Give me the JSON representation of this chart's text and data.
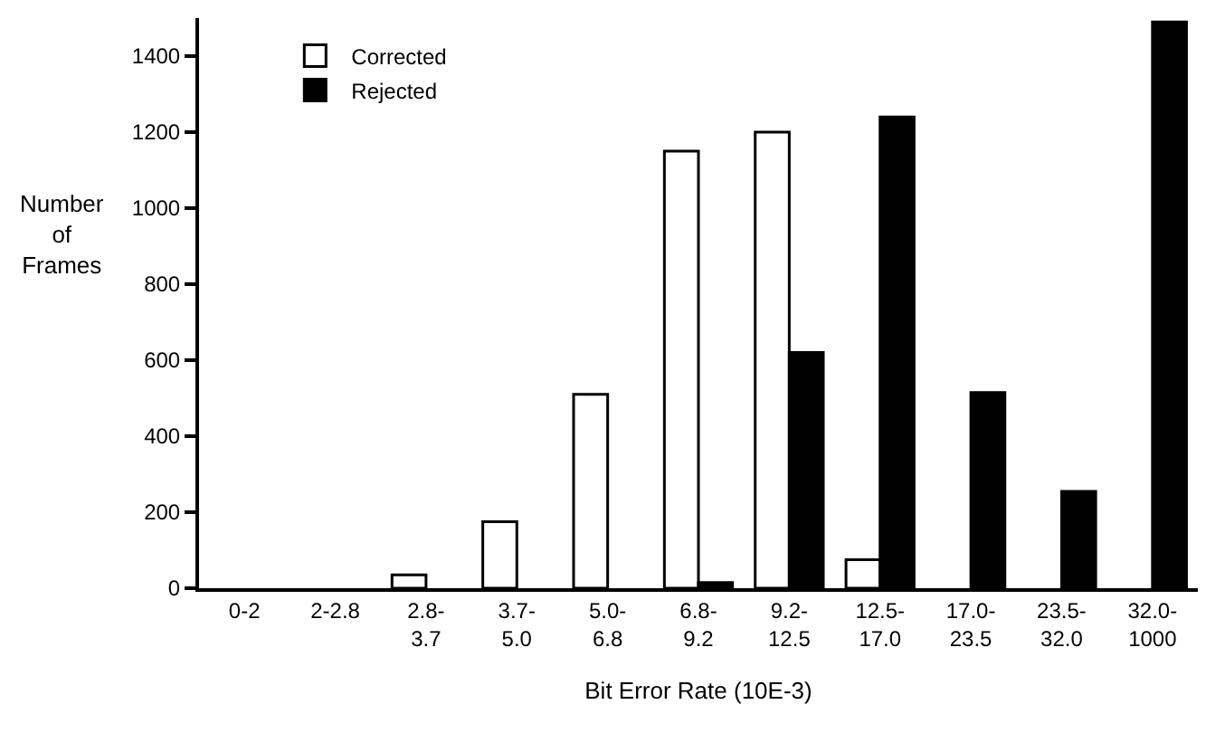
{
  "chart_data": {
    "type": "bar",
    "xlabel": "Bit Error Rate (10E-3)",
    "ylabel": "Number of Frames",
    "categories": [
      "0-2",
      "2-2.8",
      "2.8-3.7",
      "3.7-5.0",
      "5.0-6.8",
      "6.8-9.2",
      "9.2-12.5",
      "12.5-17.0",
      "17.0-23.5",
      "23.5-32.0",
      "32.0-1000"
    ],
    "series": [
      {
        "name": "Corrected",
        "color": "#ffffff",
        "values": [
          0,
          0,
          35,
          175,
          510,
          1150,
          1200,
          75,
          0,
          0,
          0
        ]
      },
      {
        "name": "Rejected",
        "color": "#000000",
        "values": [
          0,
          0,
          0,
          0,
          0,
          15,
          620,
          1240,
          515,
          255,
          1490
        ]
      }
    ],
    "ylim": [
      0,
      1500
    ],
    "yticks": [
      0,
      200,
      400,
      600,
      800,
      1000,
      1200,
      1400
    ],
    "grid": false,
    "legend": "top left"
  }
}
